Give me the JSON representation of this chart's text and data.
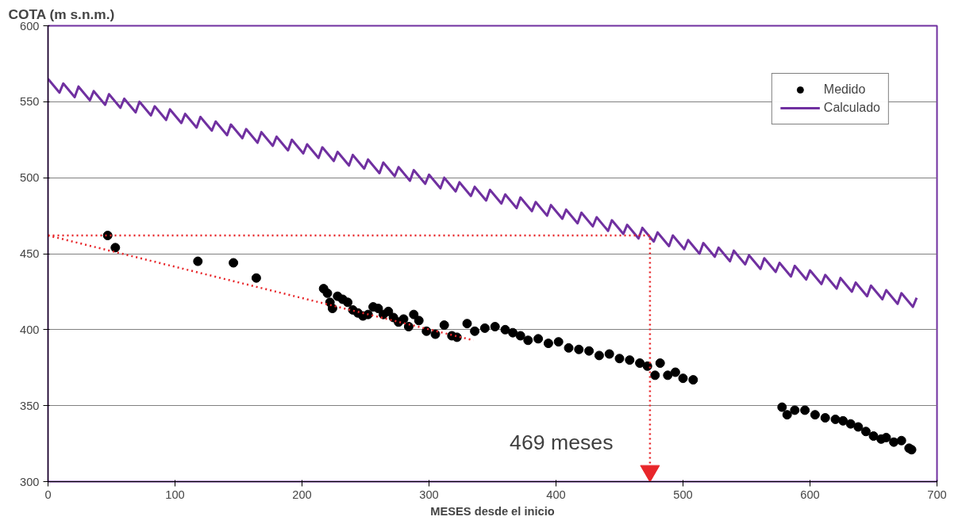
{
  "chart_data": {
    "type": "scatter",
    "ylabel": "COTA (m s.n.m.)",
    "xlabel": "MESES desde el inicio",
    "xlim": [
      0,
      700
    ],
    "xticks": [
      0,
      100,
      200,
      300,
      400,
      500,
      600,
      700
    ],
    "ylim": [
      300,
      600
    ],
    "yticks": [
      300,
      350,
      400,
      450,
      500,
      550,
      600
    ],
    "grid": "y",
    "legend": "top right",
    "annotations": [
      "469 meses"
    ],
    "series": [
      {
        "name": "Medido",
        "marker": "circle",
        "color": "#000000",
        "x": [
          47,
          53,
          118,
          146,
          164,
          217,
          220,
          222,
          224,
          228,
          232,
          236,
          240,
          244,
          248,
          252,
          256,
          260,
          264,
          268,
          272,
          276,
          280,
          284,
          288,
          292,
          298,
          305,
          312,
          318,
          322,
          330,
          336,
          344,
          352,
          360,
          366,
          372,
          378,
          386,
          394,
          402,
          410,
          418,
          426,
          434,
          442,
          450,
          458,
          466,
          472,
          478,
          482,
          488,
          494,
          500,
          508,
          578,
          582,
          588,
          596,
          604,
          612,
          620,
          626,
          632,
          638,
          644,
          650,
          656,
          660,
          666,
          672,
          678,
          680
        ],
        "values": [
          462,
          454,
          445,
          444,
          434,
          427,
          424,
          418,
          414,
          422,
          420,
          418,
          413,
          411,
          409,
          410,
          415,
          414,
          410,
          412,
          408,
          405,
          407,
          402,
          410,
          406,
          399,
          397,
          403,
          396,
          395,
          404,
          399,
          401,
          402,
          400,
          398,
          396,
          393,
          394,
          391,
          392,
          388,
          387,
          386,
          383,
          384,
          381,
          380,
          378,
          376,
          370,
          378,
          370,
          372,
          368,
          367,
          349,
          344,
          347,
          347,
          344,
          342,
          341,
          340,
          338,
          336,
          333,
          330,
          328,
          329,
          326,
          327,
          322,
          321
        ]
      },
      {
        "name": "Calculado",
        "type": "line",
        "marker": "none",
        "line_style": "solid",
        "color": "#7030a0",
        "x": [
          0,
          9,
          12,
          21,
          24,
          33,
          36,
          45,
          48,
          57,
          60,
          69,
          72,
          81,
          84,
          93,
          96,
          105,
          108,
          117,
          120,
          129,
          132,
          141,
          144,
          153,
          156,
          165,
          168,
          177,
          180,
          189,
          192,
          201,
          204,
          213,
          216,
          225,
          228,
          237,
          240,
          249,
          252,
          261,
          264,
          273,
          276,
          285,
          288,
          297,
          300,
          309,
          312,
          321,
          324,
          333,
          336,
          345,
          348,
          357,
          360,
          369,
          372,
          381,
          384,
          393,
          396,
          405,
          408,
          417,
          420,
          429,
          432,
          441,
          444,
          453,
          456,
          465,
          468,
          477,
          480,
          489,
          492,
          501,
          504,
          513,
          516,
          525,
          528,
          537,
          540,
          549,
          552,
          561,
          564,
          573,
          576,
          585,
          588,
          597,
          600,
          609,
          612,
          621,
          624,
          633,
          636,
          645,
          648,
          657,
          660,
          669,
          672,
          681,
          684
        ],
        "values": [
          565,
          556,
          562,
          553,
          560,
          551,
          557,
          548,
          555,
          546,
          552,
          543,
          550,
          541,
          547,
          538,
          545,
          536,
          542,
          533,
          540,
          531,
          537,
          528,
          535,
          526,
          532,
          523,
          530,
          521,
          527,
          518,
          525,
          516,
          522,
          513,
          520,
          511,
          517,
          508,
          515,
          506,
          512,
          503,
          510,
          501,
          507,
          498,
          505,
          496,
          502,
          493,
          500,
          491,
          497,
          488,
          494,
          485,
          492,
          483,
          489,
          480,
          487,
          478,
          484,
          475,
          482,
          473,
          479,
          470,
          477,
          468,
          474,
          465,
          472,
          463,
          469,
          460,
          467,
          458,
          464,
          455,
          462,
          453,
          459,
          450,
          457,
          448,
          454,
          445,
          452,
          443,
          449,
          440,
          447,
          438,
          444,
          435,
          442,
          433,
          439,
          430,
          436,
          427,
          434,
          425,
          431,
          422,
          429,
          420,
          426,
          417,
          424,
          415,
          421
        ]
      },
      {
        "type": "line",
        "marker": "none",
        "line_style": "dotted",
        "color": "#e8262a",
        "x": [
          0,
          335
        ],
        "values": [
          462,
          393
        ]
      },
      {
        "type": "line",
        "marker": "none",
        "line_style": "dotted",
        "color": "#e8262a",
        "x": [
          0,
          474,
          474
        ],
        "values": [
          462,
          462,
          312
        ]
      },
      {
        "type": "scatter",
        "marker": "triangle",
        "color": "#e8262a",
        "x": [
          474
        ],
        "values": [
          307
        ]
      }
    ]
  }
}
